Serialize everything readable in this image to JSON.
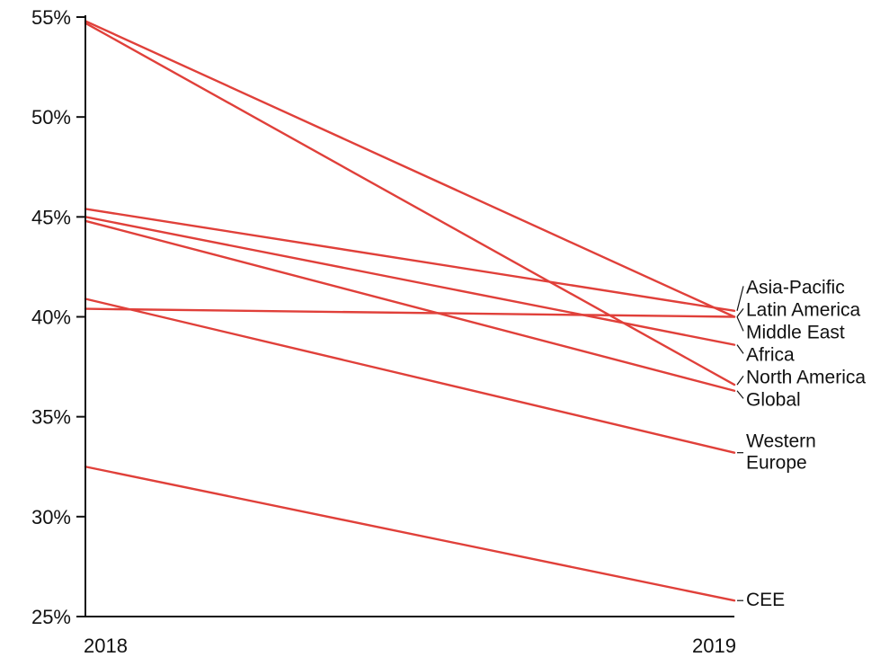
{
  "chart_data": {
    "type": "line",
    "x": [
      "2018",
      "2019"
    ],
    "ylim": [
      25,
      55
    ],
    "y_ticks": [
      "25%",
      "30%",
      "35%",
      "40%",
      "45%",
      "50%",
      "55%"
    ],
    "y_tick_values": [
      25,
      30,
      35,
      40,
      45,
      50,
      55
    ],
    "line_color": "#e0403a",
    "series": [
      {
        "name": "Asia-Pacific",
        "values": [
          45.4,
          40.3
        ]
      },
      {
        "name": "Latin America",
        "values": [
          54.8,
          40.0
        ]
      },
      {
        "name": "Middle East",
        "values": [
          40.4,
          40.0
        ]
      },
      {
        "name": "Africa",
        "values": [
          45.0,
          38.6
        ]
      },
      {
        "name": "North America",
        "values": [
          54.7,
          36.6
        ]
      },
      {
        "name": "Global",
        "values": [
          44.8,
          36.3
        ]
      },
      {
        "name": "Western\nEurope",
        "values": [
          40.9,
          33.2
        ]
      },
      {
        "name": "CEE",
        "values": [
          32.5,
          25.8
        ]
      }
    ]
  }
}
